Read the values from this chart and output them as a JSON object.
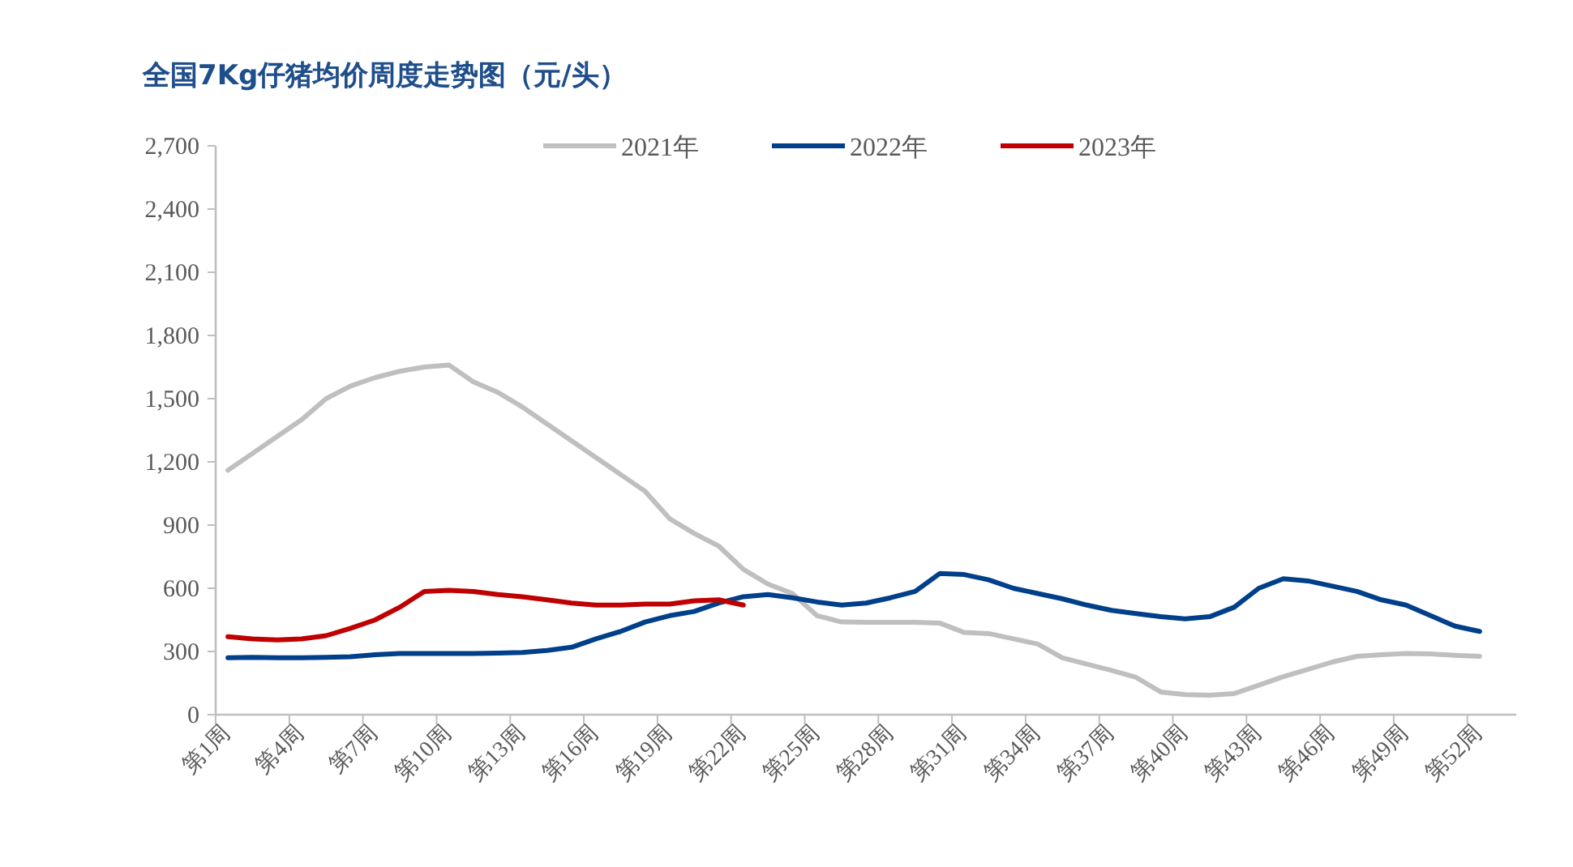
{
  "chart_data": {
    "type": "line",
    "title": "全国7Kg仔猪均价周度走势图（元/头）",
    "categories": [
      "第1周",
      null,
      null,
      "第4周",
      null,
      null,
      "第7周",
      null,
      null,
      "第10周",
      null,
      null,
      "第13周",
      null,
      null,
      "第16周",
      null,
      null,
      "第19周",
      null,
      null,
      "第22周",
      null,
      null,
      "第25周",
      null,
      null,
      "第28周",
      null,
      null,
      "第31周",
      null,
      null,
      "第34周",
      null,
      null,
      "第37周",
      null,
      null,
      "第40周",
      null,
      null,
      "第43周",
      null,
      null,
      "第46周",
      null,
      null,
      "第49周",
      null,
      null,
      "第52周"
    ],
    "series": [
      {
        "name": "2021年",
        "color": "#bfbfbf",
        "values": [
          1160,
          1240,
          1320,
          1400,
          1500,
          1560,
          1600,
          1630,
          1650,
          1660,
          1580,
          1530,
          1460,
          1380,
          1300,
          1220,
          1140,
          1060,
          930,
          860,
          800,
          690,
          620,
          575,
          470,
          440,
          438,
          438,
          438,
          435,
          390,
          385,
          360,
          335,
          270,
          240,
          210,
          177,
          108,
          95,
          92,
          100,
          140,
          180,
          215,
          250,
          277,
          285,
          290,
          288,
          282,
          277
        ]
      },
      {
        "name": "2022年",
        "color": "#003f8a",
        "values": [
          270,
          272,
          270,
          270,
          272,
          275,
          285,
          290,
          290,
          290,
          290,
          292,
          295,
          305,
          320,
          360,
          395,
          440,
          470,
          490,
          530,
          560,
          570,
          555,
          535,
          520,
          530,
          555,
          585,
          670,
          665,
          640,
          600,
          575,
          550,
          520,
          495,
          480,
          465,
          455,
          465,
          510,
          600,
          645,
          635,
          610,
          585,
          545,
          520,
          470,
          420,
          395
        ]
      },
      {
        "name": "2023年",
        "color": "#c00000",
        "values": [
          370,
          360,
          355,
          360,
          375,
          410,
          450,
          510,
          585,
          590,
          585,
          570,
          560,
          545,
          530,
          520,
          520,
          525,
          525,
          540,
          545,
          520,
          null,
          null,
          null,
          null,
          null,
          null,
          null,
          null,
          null,
          null,
          null,
          null,
          null,
          null,
          null,
          null,
          null,
          null,
          null,
          null,
          null,
          null,
          null,
          null,
          null,
          null,
          null,
          null,
          null,
          null
        ]
      }
    ],
    "ylim": [
      0,
      2700
    ],
    "yticks": [
      {
        "value": 0,
        "label": "0"
      },
      {
        "value": 300,
        "label": "300"
      },
      {
        "value": 600,
        "label": "600"
      },
      {
        "value": 900,
        "label": "900"
      },
      {
        "value": 1200,
        "label": "1,200"
      },
      {
        "value": 1500,
        "label": "1,500"
      },
      {
        "value": 1800,
        "label": "1,800"
      },
      {
        "value": 2100,
        "label": "2,100"
      },
      {
        "value": 2400,
        "label": "2,400"
      },
      {
        "value": 2700,
        "label": "2,700"
      }
    ],
    "legend": "top"
  }
}
